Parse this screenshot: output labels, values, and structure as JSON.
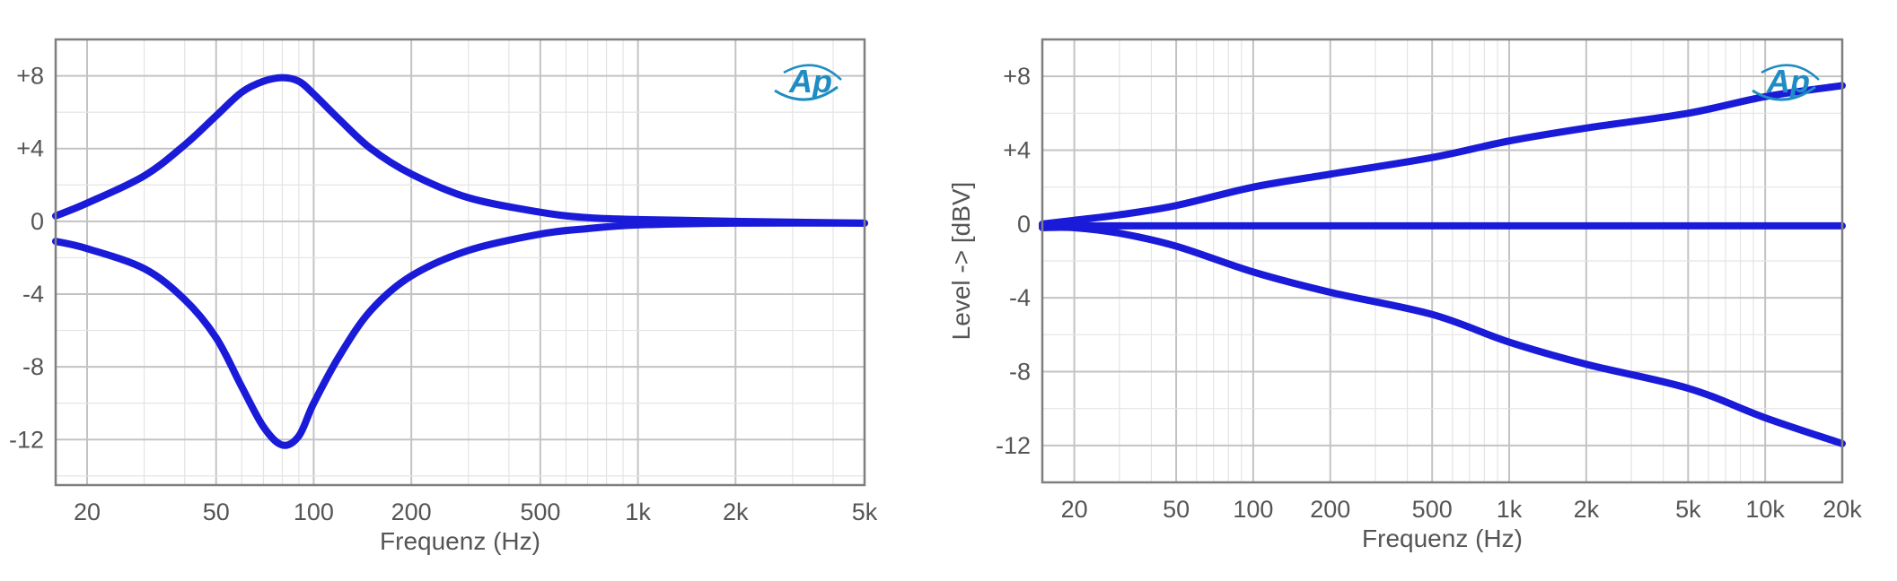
{
  "colors": {
    "curve": "#1a1ad9",
    "frame": "#7f7f7f",
    "grid_major": "#c3c3c3",
    "grid_minor": "#e4e4e4",
    "text": "#555555",
    "logo": "#1f8cc4"
  },
  "logo": {
    "text": "Ap",
    "icon": "audio-precision-logo-icon"
  },
  "chart_data": [
    {
      "type": "line",
      "title": "",
      "xlabel": "Frequenz (Hz)",
      "ylabel": "",
      "xscale": "log",
      "xlim": [
        16,
        5000
      ],
      "ylim": [
        -14.5,
        10
      ],
      "grid": true,
      "x_ticks": [
        {
          "v": 20,
          "label": "20"
        },
        {
          "v": 50,
          "label": "50"
        },
        {
          "v": 100,
          "label": "100"
        },
        {
          "v": 200,
          "label": "200"
        },
        {
          "v": 500,
          "label": "500"
        },
        {
          "v": 1000,
          "label": "1k"
        },
        {
          "v": 2000,
          "label": "2k"
        },
        {
          "v": 5000,
          "label": "5k"
        }
      ],
      "y_ticks": [
        {
          "v": 8,
          "label": "+8"
        },
        {
          "v": 4,
          "label": "+4"
        },
        {
          "v": 0,
          "label": "0"
        },
        {
          "v": -4,
          "label": "-4"
        },
        {
          "v": -8,
          "label": "-8"
        },
        {
          "v": -12,
          "label": "-12"
        }
      ],
      "series": [
        {
          "x": [
            16,
            20,
            30,
            40,
            50,
            60,
            70,
            80,
            90,
            100,
            120,
            150,
            200,
            300,
            500,
            700,
            1000,
            2000,
            5000
          ],
          "y": [
            0.3,
            1.0,
            2.5,
            4.2,
            5.8,
            7.1,
            7.7,
            7.9,
            7.7,
            7.0,
            5.6,
            4.0,
            2.6,
            1.3,
            0.5,
            0.2,
            0.1,
            0.0,
            -0.1
          ]
        },
        {
          "x": [
            16,
            20,
            30,
            40,
            50,
            60,
            70,
            80,
            90,
            100,
            120,
            150,
            200,
            300,
            500,
            700,
            1000,
            2000,
            5000
          ],
          "y": [
            -1.1,
            -1.5,
            -2.6,
            -4.3,
            -6.4,
            -9.1,
            -11.3,
            -12.3,
            -11.8,
            -10.0,
            -7.4,
            -4.9,
            -3.0,
            -1.6,
            -0.7,
            -0.4,
            -0.2,
            -0.1,
            -0.1
          ]
        }
      ]
    },
    {
      "type": "line",
      "title": "",
      "xlabel": "Frequenz (Hz)",
      "ylabel": "Level -> [dBV]",
      "xscale": "log",
      "xlim": [
        15,
        20000
      ],
      "ylim": [
        -14,
        10
      ],
      "grid": true,
      "x_ticks": [
        {
          "v": 20,
          "label": "20"
        },
        {
          "v": 50,
          "label": "50"
        },
        {
          "v": 100,
          "label": "100"
        },
        {
          "v": 200,
          "label": "200"
        },
        {
          "v": 500,
          "label": "500"
        },
        {
          "v": 1000,
          "label": "1k"
        },
        {
          "v": 2000,
          "label": "2k"
        },
        {
          "v": 5000,
          "label": "5k"
        },
        {
          "v": 10000,
          "label": "10k"
        },
        {
          "v": 20000,
          "label": "20k"
        }
      ],
      "y_ticks": [
        {
          "v": 8,
          "label": "+8"
        },
        {
          "v": 4,
          "label": "+4"
        },
        {
          "v": 0,
          "label": "0"
        },
        {
          "v": -4,
          "label": "-4"
        },
        {
          "v": -8,
          "label": "-8"
        },
        {
          "v": -12,
          "label": "-12"
        }
      ],
      "series": [
        {
          "x": [
            15,
            20,
            30,
            50,
            100,
            200,
            500,
            1000,
            2000,
            5000,
            10000,
            20000
          ],
          "y": [
            0.0,
            0.2,
            0.5,
            1.0,
            2.0,
            2.7,
            3.6,
            4.5,
            5.2,
            6.0,
            6.9,
            7.5
          ]
        },
        {
          "x": [
            15,
            20,
            50,
            100,
            200,
            500,
            1000,
            2000,
            5000,
            10000,
            20000
          ],
          "y": [
            -0.1,
            -0.1,
            -0.1,
            -0.1,
            -0.1,
            -0.1,
            -0.1,
            -0.1,
            -0.1,
            -0.1,
            -0.1
          ]
        },
        {
          "x": [
            15,
            20,
            30,
            50,
            100,
            200,
            500,
            1000,
            2000,
            5000,
            10000,
            20000
          ],
          "y": [
            -0.2,
            -0.2,
            -0.5,
            -1.2,
            -2.6,
            -3.7,
            -4.9,
            -6.4,
            -7.6,
            -8.9,
            -10.5,
            -11.9
          ]
        }
      ]
    }
  ]
}
